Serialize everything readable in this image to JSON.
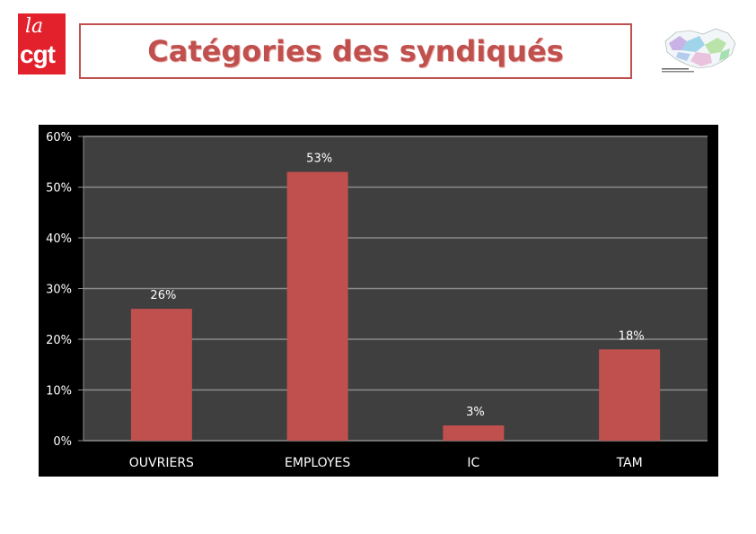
{
  "logo": {
    "text_top": "la",
    "text_bottom": "cgt"
  },
  "header": {
    "title": "Catégories des syndiqués"
  },
  "colors": {
    "bar": "#c0504d",
    "plot_bg": "#3f3f3f",
    "frame": "#000000",
    "grid": "#8c8c8c",
    "title": "#c0504d"
  },
  "chart_data": {
    "type": "bar",
    "title": "",
    "xlabel": "",
    "ylabel": "",
    "categories": [
      "OUVRIERS",
      "EMPLOYES",
      "IC",
      "TAM"
    ],
    "values": [
      26,
      53,
      3,
      18
    ],
    "data_labels": [
      "26%",
      "53%",
      "3%",
      "18%"
    ],
    "ylim": [
      0,
      60
    ],
    "yticks": [
      0,
      10,
      20,
      30,
      40,
      50,
      60
    ],
    "ytick_labels": [
      "0%",
      "10%",
      "20%",
      "30%",
      "40%",
      "50%",
      "60%"
    ],
    "grid": true,
    "legend": "none"
  }
}
